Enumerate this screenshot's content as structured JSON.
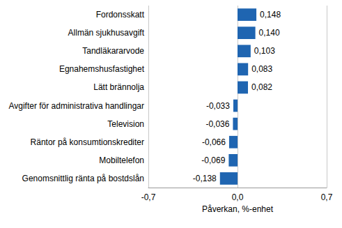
{
  "chart_data": {
    "type": "bar",
    "orientation": "horizontal",
    "categories": [
      "Fordonsskatt",
      "Allmän sjukhusavgift",
      "Tandläkararvode",
      "Egnahemshusfastighet",
      "Lätt brännolja",
      "Avgifter för administrativa handlingar",
      "Television",
      "Räntor på konsumtionskrediter",
      "Mobiltelefon",
      "Genomsnittlig ränta på bostdslån"
    ],
    "values": [
      0.148,
      0.14,
      0.103,
      0.083,
      0.082,
      -0.033,
      -0.036,
      -0.066,
      -0.069,
      -0.138
    ],
    "value_labels": [
      "0,148",
      "0,140",
      "0,103",
      "0,083",
      "0,082",
      "-0,033",
      "-0,036",
      "-0,066",
      "-0,069",
      "-0,138"
    ],
    "color": "#1f65b1",
    "xlabel": "Påverkan, %-enhet",
    "xlim": [
      -0.7,
      0.7
    ],
    "xticks": [
      {
        "value": -0.7,
        "label": "-0,7"
      },
      {
        "value": 0,
        "label": "0,0"
      },
      {
        "value": 0.7,
        "label": "0,7"
      }
    ],
    "grid": true,
    "data_labels": true
  }
}
